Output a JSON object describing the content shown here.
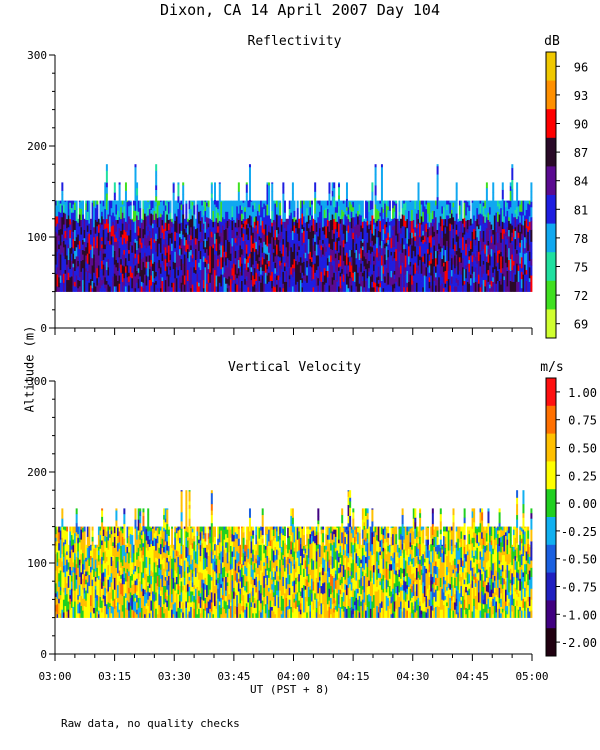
{
  "title": "Dixon, CA 14 April 2007  Day 104",
  "ylabel": "Altitude (m)",
  "xlabel": "UT  (PST + 8)",
  "footnote": "Raw data, no quality checks",
  "chart_data": [
    {
      "type": "heatmap",
      "title": "Reflectivity",
      "units": "dB",
      "x_ticks": [
        "03:00",
        "03:15",
        "03:30",
        "03:45",
        "04:00",
        "04:15",
        "04:30",
        "04:45",
        "05:00"
      ],
      "x_range_minutes_after_0300": [
        0,
        120
      ],
      "y_ticks": [
        "0",
        "100",
        "200",
        "300"
      ],
      "ylim": [
        0,
        300
      ],
      "data_bottom_m": 40,
      "main_top_m": 140,
      "sparse_max_m": 180,
      "dominant_levels_db": [
        81,
        84,
        87
      ],
      "colorbar_labels": [
        "96",
        "93",
        "90",
        "87",
        "84",
        "81",
        "78",
        "75",
        "72",
        "69"
      ],
      "colorbar_colors": [
        "#f0c800",
        "#ff9000",
        "#ff0000",
        "#2a0a28",
        "#5a0a90",
        "#1e1ee0",
        "#10a8f0",
        "#20e0a0",
        "#40e020",
        "#d0ff30"
      ]
    },
    {
      "type": "heatmap",
      "title": "Vertical Velocity",
      "units": "m/s",
      "x_ticks": [
        "03:00",
        "03:15",
        "03:30",
        "03:45",
        "04:00",
        "04:15",
        "04:30",
        "04:45",
        "05:00"
      ],
      "x_range_minutes_after_0300": [
        0,
        120
      ],
      "y_ticks": [
        "0",
        "100",
        "200",
        "300"
      ],
      "ylim": [
        0,
        300
      ],
      "data_bottom_m": 40,
      "main_top_m": 140,
      "sparse_max_m": 180,
      "dominant_levels_ms": [
        0.5,
        0.25,
        0.0,
        -0.25
      ],
      "colorbar_labels": [
        "1.00",
        "0.75",
        "0.50",
        "0.25",
        "0.00",
        "-0.25",
        "-0.50",
        "-0.75",
        "-1.00",
        "-2.00"
      ],
      "colorbar_colors": [
        "#ff1010",
        "#ff7000",
        "#ffc000",
        "#ffff00",
        "#20d020",
        "#10b0f0",
        "#1a60e0",
        "#2020c0",
        "#400080",
        "#200010"
      ]
    }
  ]
}
